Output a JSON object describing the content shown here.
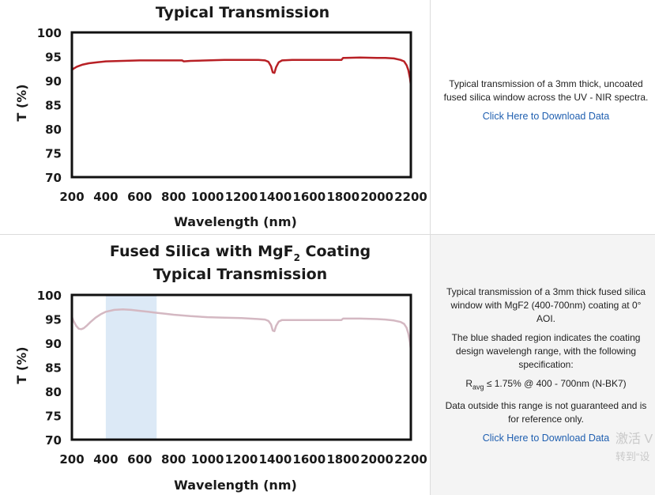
{
  "chart_data": [
    {
      "type": "line",
      "title": "Typical Transmission",
      "xlabel": "Wavelength (nm)",
      "ylabel": "T (%)",
      "xlim": [
        200,
        2200
      ],
      "ylim": [
        70,
        100
      ],
      "xticks": [
        200,
        400,
        600,
        800,
        1000,
        1200,
        1400,
        1600,
        1800,
        2000,
        2200
      ],
      "yticks": [
        100,
        95,
        90,
        85,
        80,
        75,
        70
      ],
      "grid": false,
      "series": [
        {
          "color": "#b82025",
          "x": [
            200,
            210,
            230,
            260,
            300,
            350,
            400,
            500,
            600,
            700,
            800,
            850,
            860,
            900,
            1000,
            1100,
            1200,
            1300,
            1340,
            1360,
            1375,
            1385,
            1395,
            1405,
            1420,
            1440,
            1500,
            1600,
            1700,
            1790,
            1800,
            1810,
            1900,
            2000,
            2050,
            2100,
            2140,
            2160,
            2175,
            2185,
            2195,
            2200
          ],
          "y": [
            92.2,
            92.5,
            92.9,
            93.3,
            93.6,
            93.8,
            94.0,
            94.1,
            94.2,
            94.2,
            94.2,
            94.2,
            94.0,
            94.1,
            94.2,
            94.3,
            94.3,
            94.3,
            94.2,
            93.9,
            93.0,
            91.7,
            91.6,
            92.8,
            93.8,
            94.2,
            94.3,
            94.3,
            94.3,
            94.3,
            94.7,
            94.7,
            94.8,
            94.7,
            94.7,
            94.6,
            94.3,
            94.0,
            93.2,
            92.2,
            90.5,
            89.0
          ]
        }
      ]
    },
    {
      "type": "line",
      "title": "Fused Silica with MgF",
      "title_sub": "2",
      "title_tail": " Coating",
      "title2": "Typical Transmission",
      "xlabel": "Wavelength (nm)",
      "ylabel": "T (%)",
      "xlim": [
        200,
        2200
      ],
      "ylim": [
        70,
        100
      ],
      "xticks": [
        200,
        400,
        600,
        800,
        1000,
        1200,
        1400,
        1600,
        1800,
        2000,
        2200
      ],
      "yticks": [
        100,
        95,
        90,
        85,
        80,
        75,
        70
      ],
      "grid": false,
      "shaded_region": {
        "x": [
          400,
          700
        ],
        "color": "#dce9f6"
      },
      "series": [
        {
          "color": "#d4b8c2",
          "x": [
            200,
            210,
            225,
            240,
            255,
            270,
            290,
            310,
            340,
            370,
            400,
            450,
            500,
            550,
            600,
            650,
            700,
            750,
            800,
            900,
            1000,
            1100,
            1200,
            1300,
            1340,
            1360,
            1375,
            1385,
            1395,
            1405,
            1420,
            1440,
            1500,
            1600,
            1700,
            1790,
            1800,
            1810,
            1900,
            2000,
            2050,
            2100,
            2140,
            2160,
            2175,
            2185,
            2195,
            2200
          ],
          "y": [
            95.5,
            94.6,
            93.6,
            93.0,
            92.9,
            93.1,
            93.7,
            94.4,
            95.3,
            96.0,
            96.5,
            96.9,
            97.0,
            96.9,
            96.7,
            96.5,
            96.3,
            96.1,
            95.9,
            95.6,
            95.4,
            95.3,
            95.2,
            95.0,
            94.9,
            94.6,
            93.9,
            92.6,
            92.5,
            93.6,
            94.5,
            94.8,
            94.8,
            94.8,
            94.8,
            94.8,
            95.1,
            95.1,
            95.1,
            95.0,
            94.9,
            94.7,
            94.4,
            94.0,
            93.2,
            92.0,
            90.2,
            88.5
          ]
        }
      ]
    }
  ],
  "descriptions": {
    "top": {
      "text": "Typical transmission of a 3mm thick, uncoated fused silica window across the UV - NIR spectra.",
      "link": "Click Here to Download Data"
    },
    "bottom": {
      "text1": "Typical transmission of a 3mm thick fused silica window with MgF2 (400-700nm) coating at 0° AOI.",
      "text2": "The blue shaded region indicates the coating design wavelengh range, with the following specification:",
      "spec_symbol": "R",
      "spec_sub": "avg",
      "spec_rest": " ≤ 1.75% @ 400 - 700nm (N-BK7)",
      "text3": "Data outside this range is not guaranteed and is for reference only.",
      "link": "Click Here to Download Data"
    }
  },
  "watermark": {
    "line1": "激活 V",
    "line2": "转到“设"
  }
}
